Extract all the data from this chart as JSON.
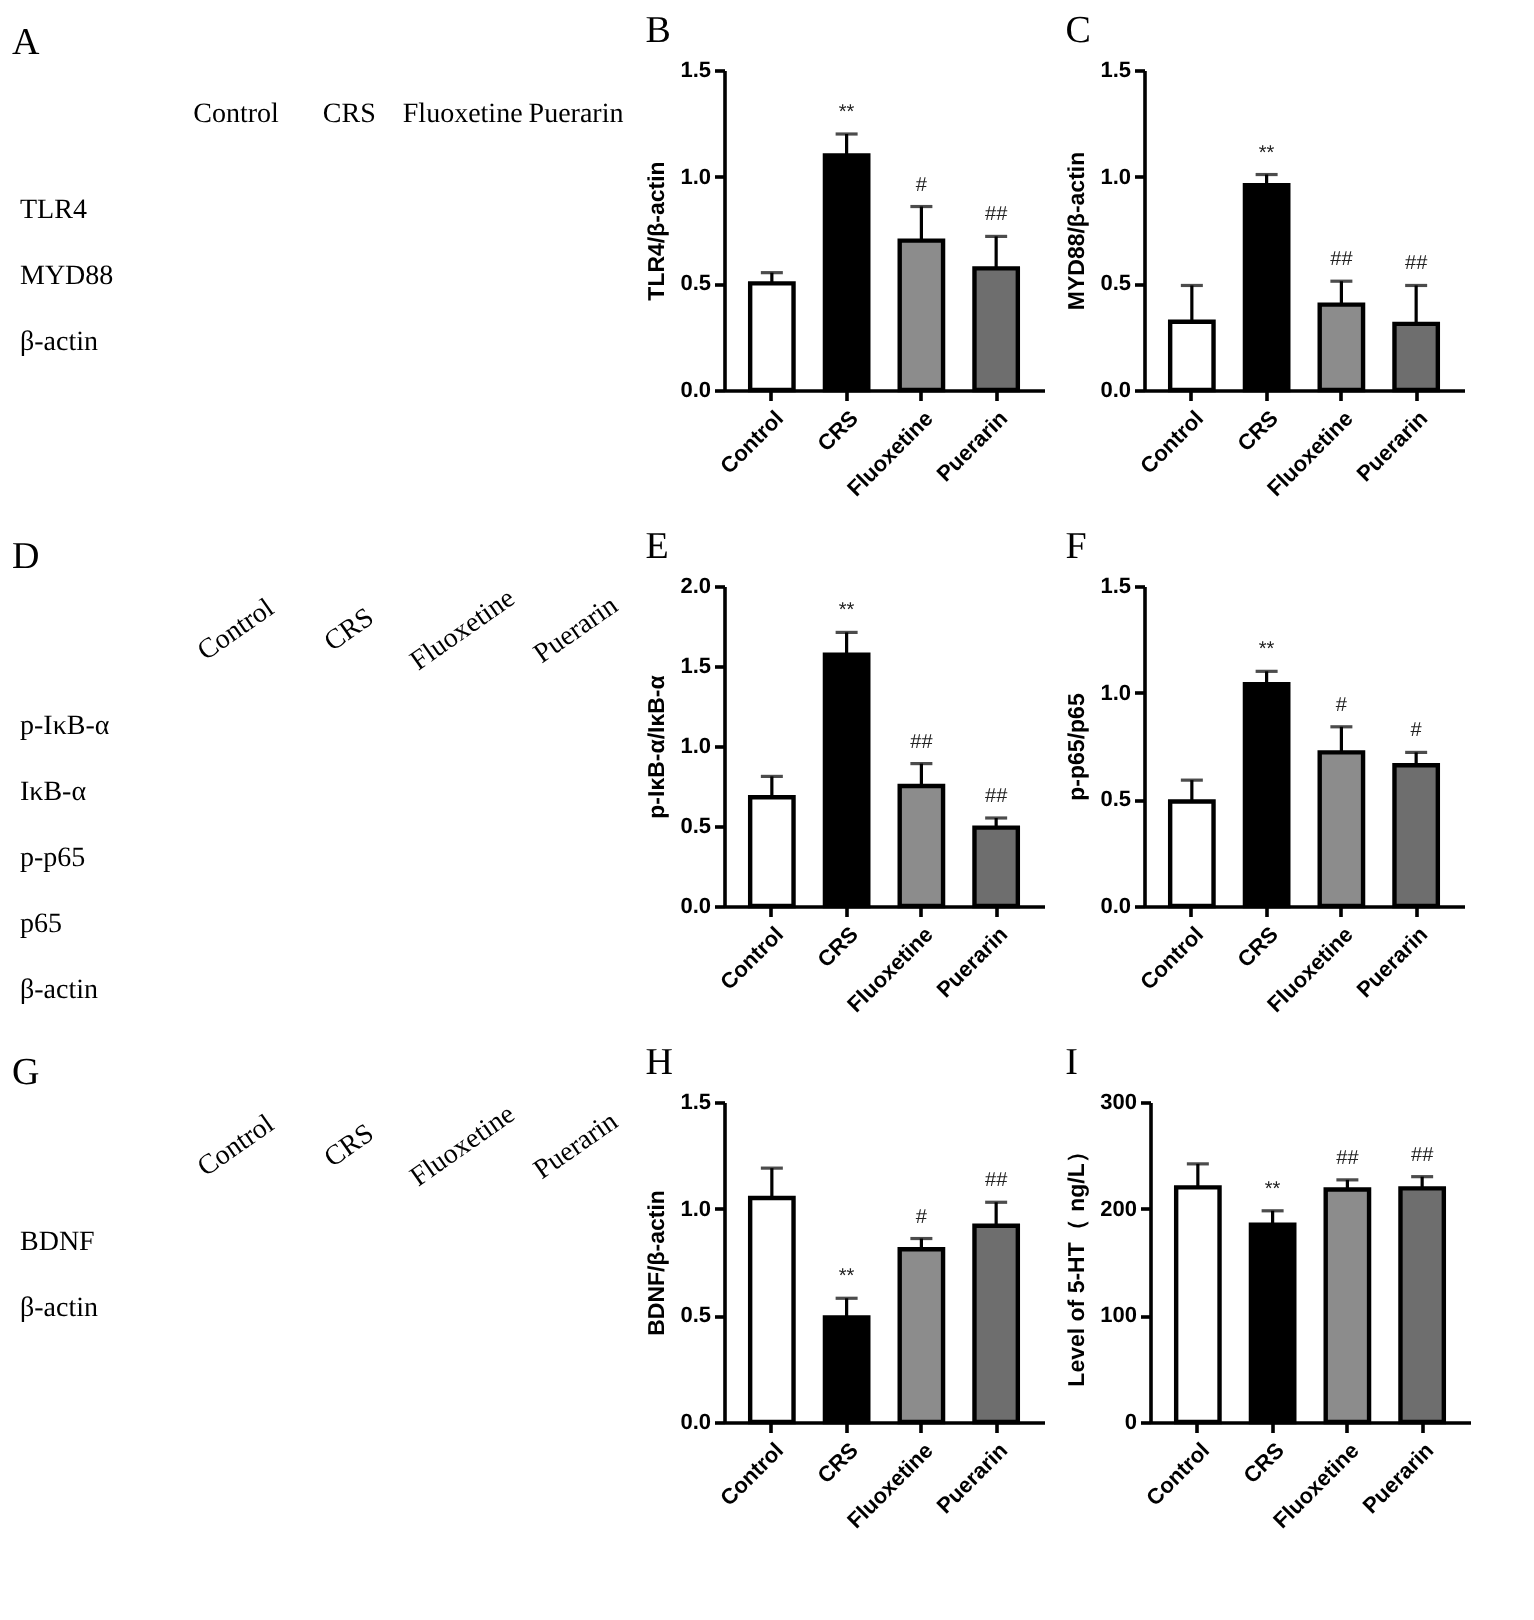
{
  "chart_data": [
    {
      "type": "other",
      "title": "A",
      "categories": [
        "Control",
        "CRS",
        "Fluoxetine",
        "Puerarin"
      ],
      "y_categories": [
        "TLR4",
        "MYD88",
        "β-actin"
      ]
    },
    {
      "type": "bar",
      "title": "B",
      "ylabel": "TLR4/β-actin",
      "categories": [
        "Control",
        "CRS",
        "Fluoxetine",
        "Puerarin"
      ],
      "values": [
        0.5,
        1.1,
        0.7,
        0.57
      ],
      "errors": [
        0.05,
        0.1,
        0.16,
        0.15
      ],
      "colors": [
        "#ffffff",
        "#000000",
        "#8c8c8c",
        "#6e6e6e"
      ],
      "ylim": [
        0,
        1.5
      ],
      "yticks": [
        {
          "value": 0,
          "label": "0.0"
        },
        0.5,
        {
          "value": 1,
          "label": "1.0"
        },
        1.5
      ],
      "annotations": [
        "**",
        "#",
        "##"
      ]
    },
    {
      "type": "bar",
      "title": "C",
      "ylabel": "MYD88/β-actin",
      "categories": [
        "Control",
        "CRS",
        "Fluoxetine",
        "Puerarin"
      ],
      "values": [
        0.32,
        0.96,
        0.4,
        0.31
      ],
      "errors": [
        0.17,
        0.05,
        0.11,
        0.18
      ],
      "colors": [
        "#ffffff",
        "#000000",
        "#8c8c8c",
        "#6e6e6e"
      ],
      "ylim": [
        0,
        1.5
      ],
      "yticks": [
        {
          "value": 0,
          "label": "0.0"
        },
        0.5,
        {
          "value": 1,
          "label": "1.0"
        },
        1.5
      ],
      "annotations": [
        "**",
        "##",
        "##"
      ]
    },
    {
      "type": "other",
      "title": "D",
      "categories": [
        "Control",
        "CRS",
        "Fluoxetine",
        "Puerarin"
      ],
      "y_categories": [
        "p-IκB-α",
        "IκB-α",
        "p-p65",
        "p65",
        "β-actin"
      ]
    },
    {
      "type": "bar",
      "title": "E",
      "ylabel": "p-IκB-α/IκB-α",
      "categories": [
        "Control",
        "CRS",
        "Fluoxetine",
        "Puerarin"
      ],
      "values": [
        0.68,
        1.57,
        0.75,
        0.49
      ],
      "errors": [
        0.13,
        0.14,
        0.14,
        0.06
      ],
      "colors": [
        "#ffffff",
        "#000000",
        "#8c8c8c",
        "#6e6e6e"
      ],
      "ylim": [
        0,
        2
      ],
      "yticks": [
        {
          "value": 0,
          "label": "0.0"
        },
        0.5,
        {
          "value": 1,
          "label": "1.0"
        },
        1.5,
        {
          "value": 2,
          "label": "2.0"
        }
      ],
      "annotations": [
        "**",
        "##",
        "##"
      ]
    },
    {
      "type": "bar",
      "title": "F",
      "ylabel": "p-p65/p65",
      "categories": [
        "Control",
        "CRS",
        "Fluoxetine",
        "Puerarin"
      ],
      "values": [
        0.49,
        1.04,
        0.72,
        0.66
      ],
      "errors": [
        0.1,
        0.06,
        0.12,
        0.06
      ],
      "colors": [
        "#ffffff",
        "#000000",
        "#8c8c8c",
        "#6e6e6e"
      ],
      "ylim": [
        0,
        1.5
      ],
      "yticks": [
        {
          "value": 0,
          "label": "0.0"
        },
        0.5,
        {
          "value": 1,
          "label": "1.0"
        },
        1.5
      ],
      "annotations": [
        "**",
        "#",
        "#"
      ]
    },
    {
      "type": "other",
      "title": "G",
      "categories": [
        "Control",
        "CRS",
        "Fluoxetine",
        "Puerarin"
      ],
      "y_categories": [
        "BDNF",
        "β-actin"
      ]
    },
    {
      "type": "bar",
      "title": "H",
      "ylabel": "BDNF/β-actin",
      "categories": [
        "Control",
        "CRS",
        "Fluoxetine",
        "Puerarin"
      ],
      "values": [
        1.05,
        0.49,
        0.81,
        0.92
      ],
      "errors": [
        0.14,
        0.09,
        0.05,
        0.11
      ],
      "colors": [
        "#ffffff",
        "#000000",
        "#8c8c8c",
        "#6e6e6e"
      ],
      "ylim": [
        0,
        1.5
      ],
      "yticks": [
        {
          "value": 0,
          "label": "0.0"
        },
        0.5,
        {
          "value": 1,
          "label": "1.0"
        },
        1.5
      ],
      "annotations": [
        "**",
        "#",
        "##"
      ]
    },
    {
      "type": "bar",
      "title": "I",
      "ylabel": "Level of 5-HT（ ng/L）",
      "categories": [
        "Control",
        "CRS",
        "Fluoxetine",
        "Puerarin"
      ],
      "values": [
        220,
        185,
        218,
        219
      ],
      "errors": [
        22,
        13,
        9,
        11
      ],
      "colors": [
        "#ffffff",
        "#000000",
        "#8c8c8c",
        "#6e6e6e"
      ],
      "ylim": [
        0,
        300
      ],
      "yticks": [
        0,
        100,
        200,
        300
      ],
      "annotations": [
        "**",
        "##",
        "##"
      ]
    }
  ]
}
